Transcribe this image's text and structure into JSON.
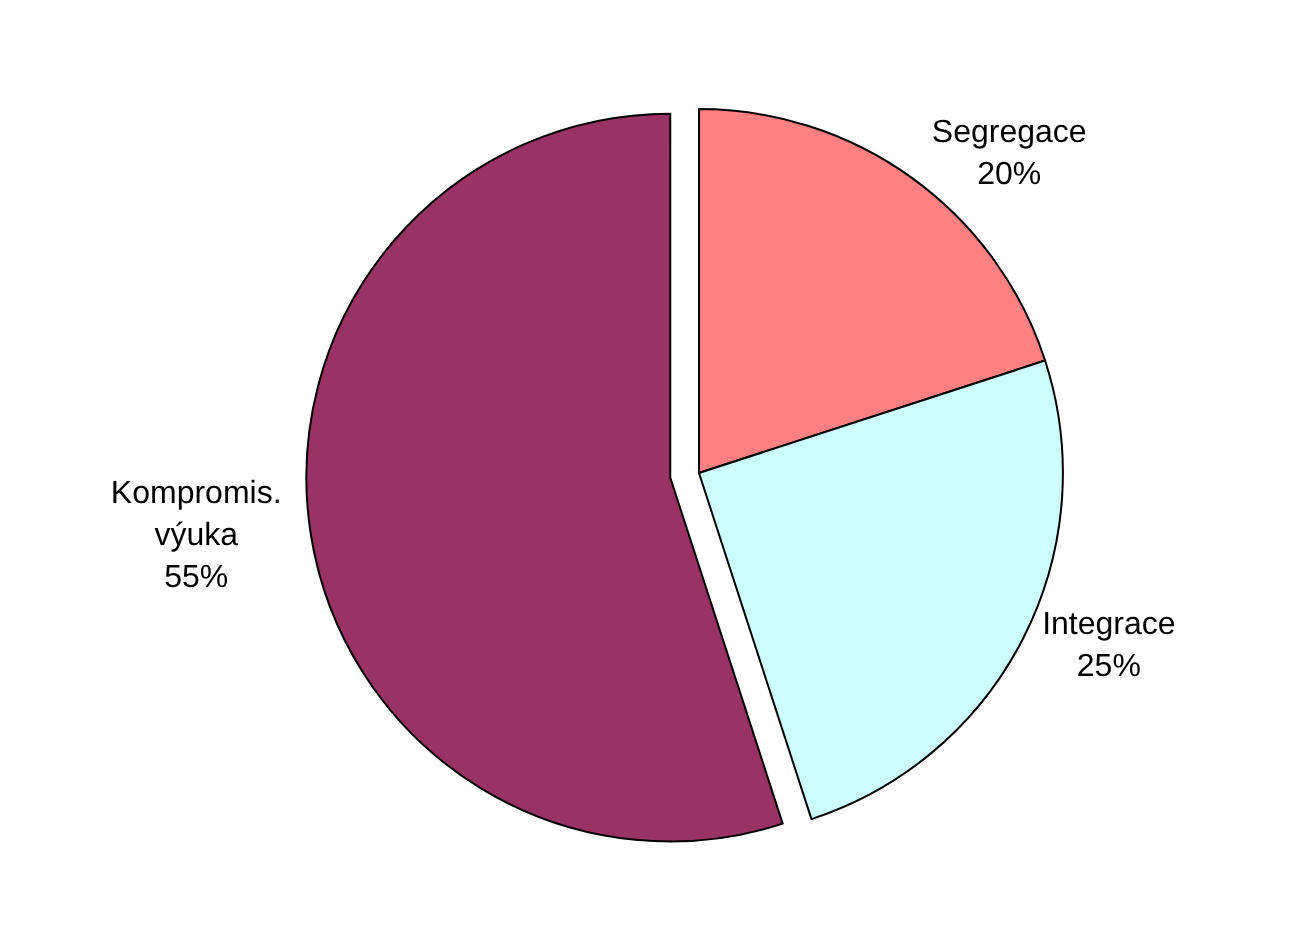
{
  "chart_data": {
    "type": "pie",
    "categories": [
      "Segregace",
      "Integrace",
      "Kompromis.\nvýuka"
    ],
    "values": [
      20,
      25,
      55
    ],
    "colors": [
      "#ff8080",
      "#ccffff",
      "#993366"
    ],
    "value_labels": [
      "20%",
      "25%",
      "55%"
    ],
    "legend": false
  }
}
